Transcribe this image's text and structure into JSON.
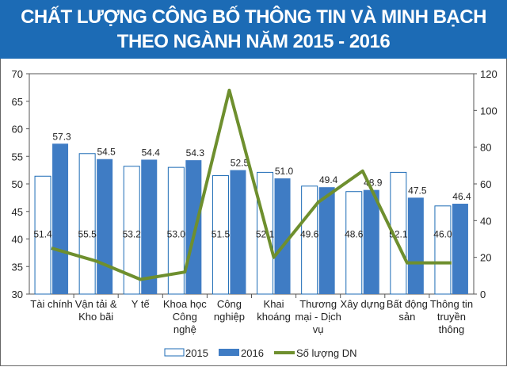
{
  "chart_data": {
    "type": "bar+line",
    "title_lines": [
      "CHẤT LƯỢNG CÔNG BỐ THÔNG TIN VÀ MINH BẠCH",
      "THEO NGÀNH NĂM 2015 - 2016"
    ],
    "categories": [
      [
        "Tài chính"
      ],
      [
        "Vận tải &",
        "Kho bãi"
      ],
      [
        "Y tế"
      ],
      [
        "Khoa học",
        "Công",
        "nghệ"
      ],
      [
        "Công",
        "nghiệp"
      ],
      [
        "Khai",
        "khoáng"
      ],
      [
        "Thương",
        "mại - Dịch",
        "vụ"
      ],
      [
        "Xây dựng"
      ],
      [
        "Bất động",
        "sản"
      ],
      [
        "Thông tin",
        "truyền",
        "thông"
      ]
    ],
    "series": [
      {
        "name": "2015",
        "type": "bar",
        "axis": "left",
        "color": "#ffffff",
        "stroke": "#1c6bb5",
        "values": [
          51.4,
          55.5,
          53.2,
          53.0,
          51.5,
          52.1,
          49.6,
          48.6,
          52.1,
          46.0
        ]
      },
      {
        "name": "2016",
        "type": "bar",
        "axis": "left",
        "color": "#3f7cc4",
        "values": [
          57.3,
          54.5,
          54.4,
          54.3,
          52.5,
          51.0,
          49.4,
          48.9,
          47.5,
          46.4
        ]
      },
      {
        "name": "Số lượng DN",
        "type": "line",
        "axis": "right",
        "color": "#6e8f2e",
        "values": [
          25,
          18,
          8,
          12,
          111,
          20,
          50,
          67,
          17,
          17
        ]
      }
    ],
    "left_axis": {
      "ylim": [
        30,
        70
      ],
      "ticks": [
        "30",
        "35",
        "40",
        "45",
        "50",
        "55",
        "60",
        "65",
        "70"
      ]
    },
    "right_axis": {
      "ylim": [
        0,
        120
      ],
      "ticks": [
        "0",
        "20",
        "40",
        "60",
        "80",
        "100",
        "120"
      ]
    },
    "legend_position": "bottom",
    "grid": false
  }
}
